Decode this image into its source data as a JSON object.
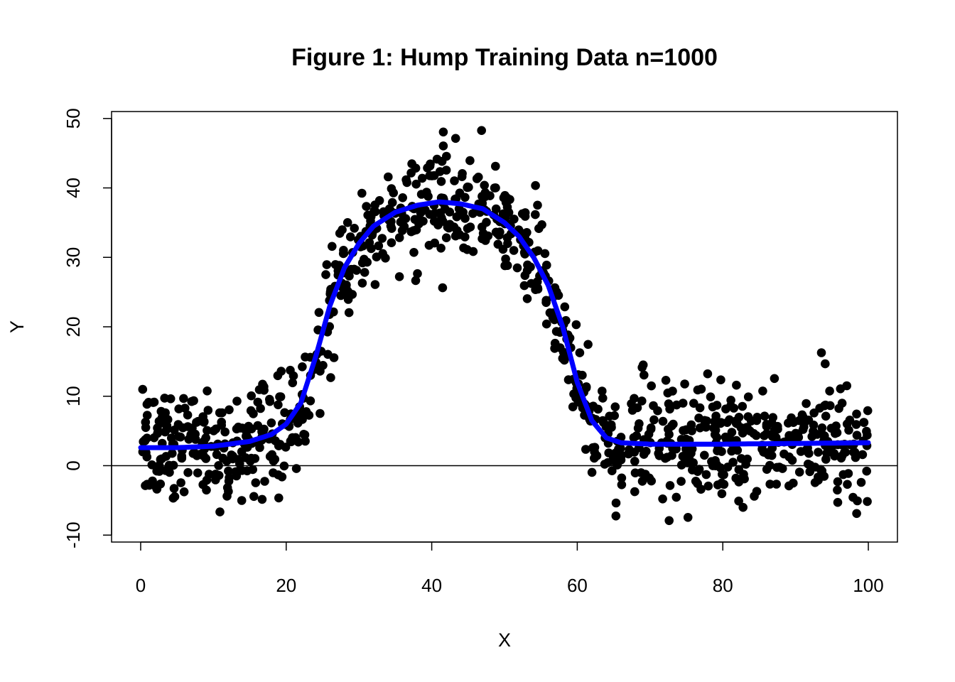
{
  "chart_data": {
    "type": "scatter",
    "title": "Figure 1: Hump Training Data n=1000",
    "xlabel": "X",
    "ylabel": "Y",
    "xlim": [
      -4,
      104
    ],
    "ylim": [
      -11,
      51
    ],
    "xticks": [
      0,
      20,
      40,
      60,
      80,
      100
    ],
    "yticks": [
      -10,
      0,
      10,
      20,
      30,
      40,
      50
    ],
    "xtick_labels": [
      "0",
      "20",
      "40",
      "60",
      "80",
      "100"
    ],
    "ytick_labels": [
      "-10",
      "0",
      "10",
      "20",
      "30",
      "40",
      "50"
    ],
    "grid": false,
    "legend": "none",
    "reference_line": {
      "y": 0,
      "color": "#000000"
    },
    "point_color": "#000000",
    "curve_color": "#0000ff",
    "n_points": 1000,
    "noise_sd": 4,
    "curve": {
      "x": [
        0,
        5,
        10,
        15,
        18,
        20,
        22,
        24,
        26,
        28,
        30,
        32,
        35,
        38,
        41,
        44,
        47,
        50,
        52,
        54,
        56,
        58,
        60,
        62,
        64,
        66,
        70,
        80,
        90,
        100
      ],
      "y": [
        2.6,
        2.6,
        2.8,
        3.5,
        4.5,
        6.0,
        9.0,
        15.5,
        23.0,
        28.5,
        32.0,
        34.5,
        36.5,
        37.5,
        38.0,
        37.7,
        37.0,
        35.0,
        33.0,
        30.0,
        26.0,
        20.0,
        12.0,
        6.5,
        4.0,
        3.3,
        3.1,
        3.1,
        3.2,
        3.3
      ]
    }
  }
}
